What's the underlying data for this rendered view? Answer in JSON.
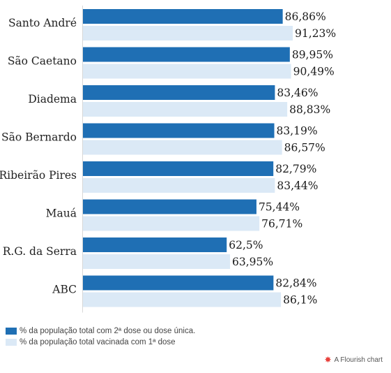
{
  "chart_data": {
    "type": "bar",
    "orientation": "horizontal",
    "categories": [
      "Santo André",
      "São Caetano",
      "Diadema",
      "São Bernardo",
      "Ribeirão Pires",
      "Mauá",
      "R.G. da Serra",
      "ABC"
    ],
    "series": [
      {
        "name": "% da população total com 2ª dose ou dose única.",
        "color": "#1f6fb4",
        "values": [
          86.86,
          89.95,
          83.46,
          83.19,
          82.79,
          75.44,
          62.5,
          82.84
        ],
        "labels": [
          "86,86%",
          "89,95%",
          "83,46%",
          "83,19%",
          "82,79%",
          "75,44%",
          "62,5%",
          "82,84%"
        ]
      },
      {
        "name": "% da população total vacinada com 1ª dose",
        "color": "#dbe9f6",
        "values": [
          91.23,
          90.49,
          88.83,
          86.57,
          83.44,
          76.71,
          63.95,
          86.1
        ],
        "labels": [
          "91,23%",
          "90,49%",
          "88,83%",
          "86,57%",
          "83,44%",
          "76,71%",
          "63,95%",
          "86,1%"
        ]
      }
    ],
    "xlim": [
      0,
      100
    ],
    "grid": false,
    "legend_position": "bottom-left"
  },
  "credit": {
    "text": "A Flourish chart",
    "icon": "flourish-logo-icon"
  }
}
